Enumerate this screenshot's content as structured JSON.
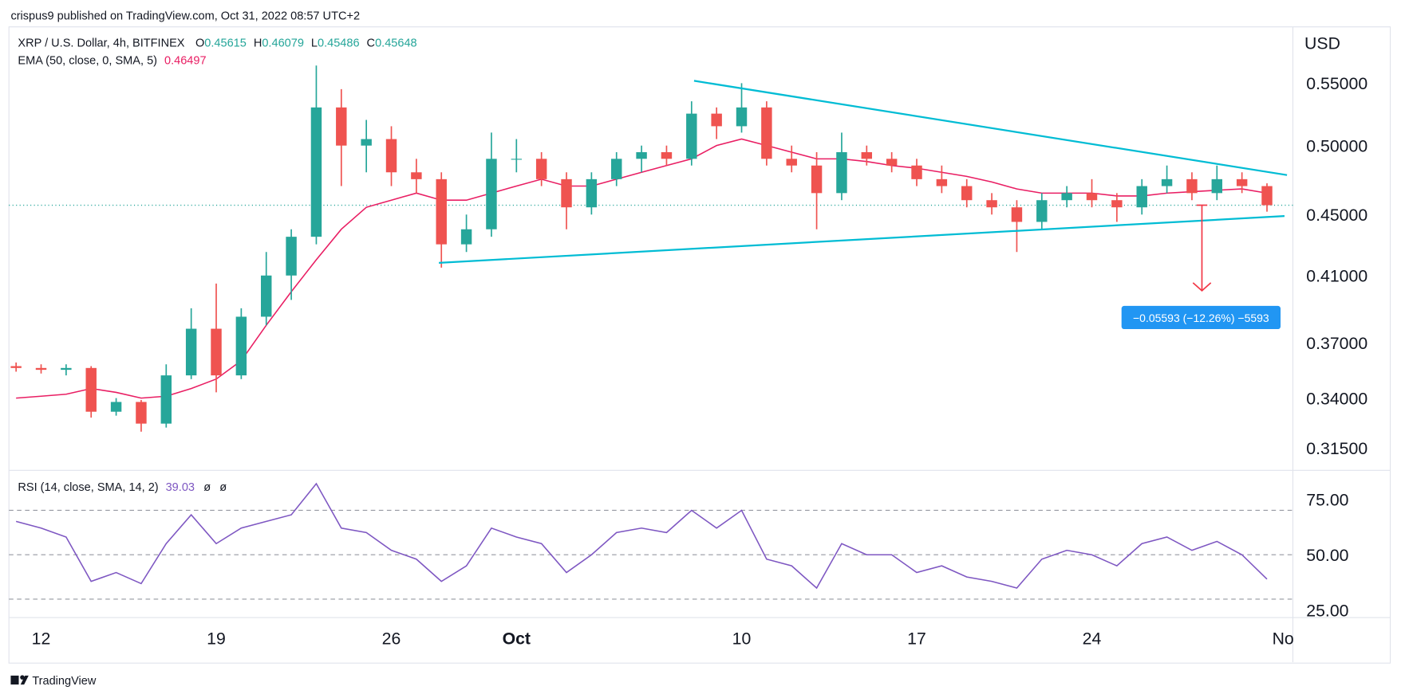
{
  "header": "crispus9 published on TradingView.com, Oct 31, 2022 08:57 UTC+2",
  "footer": "TradingView",
  "chart_data": [
    {
      "type": "candlestick",
      "title": "XRP / U.S. Dollar, 4h, BITFINEX",
      "ohlc_legend": [
        {
          "key": "O",
          "value": "0.45615"
        },
        {
          "key": "H",
          "value": "0.46079"
        },
        {
          "key": "L",
          "value": "0.45486"
        },
        {
          "key": "C",
          "value": "0.45648"
        }
      ],
      "axis_unit": "USD",
      "log_scale": true,
      "up_color": "#26a69a",
      "down_color": "#ef5350",
      "categories": [
        null,
        "12",
        null,
        null,
        null,
        null,
        null,
        null,
        "19",
        null,
        null,
        null,
        null,
        null,
        null,
        "26",
        null,
        null,
        null,
        null,
        "Oct",
        null,
        null,
        null,
        null,
        null,
        null,
        null,
        null,
        "10",
        null,
        null,
        null,
        null,
        null,
        null,
        "17",
        null,
        null,
        null,
        null,
        null,
        null,
        "24",
        null,
        null,
        null,
        null,
        null,
        null,
        null,
        "No"
      ],
      "open": [
        0.357,
        0.356,
        0.355,
        0.356,
        0.333,
        0.338,
        0.327,
        0.352,
        0.378,
        0.352,
        0.385,
        0.41,
        0.435,
        0.53,
        0.5,
        0.505,
        0.48,
        0.475,
        0.43,
        0.44,
        0.49,
        0.49,
        0.475,
        0.455,
        0.475,
        0.49,
        0.495,
        0.49,
        0.525,
        0.515,
        0.53,
        0.49,
        0.485,
        0.465,
        0.495,
        0.49,
        0.485,
        0.475,
        0.47,
        0.46,
        0.455,
        0.445,
        0.46,
        0.465,
        0.46,
        0.455,
        0.47,
        0.475,
        0.465,
        0.475,
        0.47,
        null
      ],
      "high": [
        0.359,
        0.358,
        0.358,
        0.357,
        0.34,
        0.339,
        0.358,
        0.39,
        0.405,
        0.39,
        0.425,
        0.44,
        0.565,
        0.545,
        0.52,
        0.515,
        0.49,
        0.48,
        0.45,
        0.51,
        0.505,
        0.495,
        0.48,
        0.48,
        0.495,
        0.5,
        0.5,
        0.535,
        0.53,
        0.55,
        0.535,
        0.5,
        0.495,
        0.51,
        0.5,
        0.495,
        0.49,
        0.485,
        0.475,
        0.465,
        0.46,
        0.465,
        0.47,
        0.475,
        0.465,
        0.475,
        0.485,
        0.48,
        0.485,
        0.48,
        0.472,
        null
      ],
      "low": [
        0.354,
        0.353,
        0.352,
        0.33,
        0.331,
        0.323,
        0.325,
        0.35,
        0.343,
        0.35,
        0.38,
        0.395,
        0.43,
        0.47,
        0.48,
        0.47,
        0.465,
        0.415,
        0.425,
        0.435,
        0.48,
        0.47,
        0.44,
        0.45,
        0.47,
        0.48,
        0.485,
        0.485,
        0.505,
        0.51,
        0.485,
        0.48,
        0.44,
        0.46,
        0.485,
        0.48,
        0.47,
        0.465,
        0.455,
        0.45,
        0.425,
        0.44,
        0.455,
        0.455,
        0.445,
        0.45,
        0.465,
        0.46,
        0.46,
        0.465,
        0.452,
        null
      ],
      "close": [
        0.356,
        0.355,
        0.356,
        0.333,
        0.338,
        0.327,
        0.352,
        0.378,
        0.352,
        0.385,
        0.41,
        0.435,
        0.53,
        0.5,
        0.505,
        0.48,
        0.475,
        0.43,
        0.44,
        0.49,
        0.49,
        0.475,
        0.455,
        0.475,
        0.49,
        0.495,
        0.49,
        0.525,
        0.515,
        0.53,
        0.49,
        0.485,
        0.465,
        0.495,
        0.49,
        0.485,
        0.475,
        0.47,
        0.46,
        0.455,
        0.445,
        0.46,
        0.465,
        0.46,
        0.455,
        0.47,
        0.475,
        0.465,
        0.475,
        0.47,
        0.45648,
        null
      ],
      "series": [
        {
          "name": "EMA (50, close, 0, SMA, 5)",
          "color": "#e91e63",
          "last_value_label": "0.46497",
          "values": [
            0.34,
            0.341,
            0.342,
            0.345,
            0.343,
            0.34,
            0.341,
            0.345,
            0.35,
            0.36,
            0.38,
            0.4,
            0.42,
            0.44,
            0.455,
            0.46,
            0.465,
            0.46,
            0.46,
            0.465,
            0.47,
            0.475,
            0.47,
            0.47,
            0.475,
            0.48,
            0.485,
            0.49,
            0.5,
            0.505,
            0.5,
            0.495,
            0.49,
            0.49,
            0.488,
            0.485,
            0.483,
            0.48,
            0.477,
            0.473,
            0.468,
            0.465,
            0.465,
            0.465,
            0.463,
            0.463,
            0.465,
            0.466,
            0.467,
            0.468,
            0.46497,
            null
          ]
        }
      ],
      "last_price": 0.45648,
      "last_price_color": "#26a69a",
      "ylim": [
        0.3053,
        0.5994
      ],
      "yticks": [
        {
          "value": 0.315,
          "label": "0.31500"
        },
        {
          "value": 0.34,
          "label": "0.34000"
        },
        {
          "value": 0.37,
          "label": "0.37000"
        },
        {
          "value": 0.41,
          "label": "0.41000"
        },
        {
          "value": 0.45,
          "label": "0.45000"
        },
        {
          "value": 0.5,
          "label": "0.50000"
        },
        {
          "value": 0.55,
          "label": "0.55000"
        }
      ],
      "trendline_color": "#00bcd4",
      "trendlines": [
        {
          "from": [
            27.1,
            0.552
          ],
          "to": [
            50.8,
            0.478
          ]
        },
        {
          "from": [
            16.9,
            0.418
          ],
          "to": [
            50.7,
            0.449
          ]
        }
      ],
      "measure": {
        "x": 47.4,
        "from": 0.4565,
        "to": 0.40057,
        "color": "#f23645",
        "label_color": "#2196f3",
        "label": "−0.05593 (−12.26%) −5593"
      }
    },
    {
      "type": "line",
      "series": [
        {
          "name": "RSI (14, close, SMA, 14, 2)",
          "color": "#7e57c2",
          "last_value_label": "39.03",
          "values": [
            65,
            62,
            58,
            38,
            42,
            37,
            55,
            68,
            55,
            62,
            65,
            68,
            82,
            62,
            60,
            52,
            48,
            38,
            45,
            62,
            58,
            55,
            42,
            50,
            60,
            62,
            60,
            70,
            62,
            70,
            48,
            45,
            35,
            55,
            50,
            50,
            42,
            45,
            40,
            38,
            35,
            48,
            52,
            50,
            45,
            55,
            58,
            52,
            56,
            50,
            39.03,
            null
          ]
        }
      ],
      "legend_extra": [
        "ø",
        "ø"
      ],
      "levels": [
        30,
        50,
        70
      ],
      "ylim": [
        21.7,
        87.6
      ],
      "yticks": [
        {
          "value": 25,
          "label": "25.00"
        },
        {
          "value": 50,
          "label": "50.00"
        },
        {
          "value": 75,
          "label": "75.00"
        }
      ]
    }
  ]
}
